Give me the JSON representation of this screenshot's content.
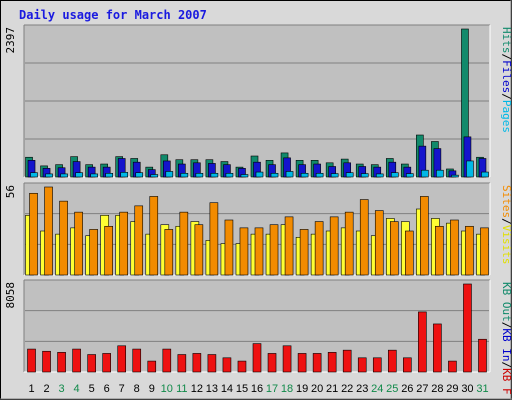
{
  "chart_data": {
    "type": "bar",
    "title": "Daily usage for March 2007",
    "categories": [
      "1",
      "2",
      "3",
      "4",
      "5",
      "6",
      "7",
      "8",
      "9",
      "10",
      "11",
      "12",
      "13",
      "14",
      "15",
      "16",
      "17",
      "18",
      "19",
      "20",
      "21",
      "22",
      "23",
      "24",
      "25",
      "26",
      "27",
      "28",
      "29",
      "30",
      "31"
    ],
    "weekend_days": [
      "3",
      "4",
      "10",
      "11",
      "17",
      "18",
      "24",
      "25",
      "31"
    ],
    "panels": [
      {
        "id": "hits",
        "max_label": "2397",
        "ylim": [
          0,
          2397
        ],
        "legend": [
          {
            "text": "Pages",
            "color": "#00b8e6"
          },
          {
            "text": "/",
            "color": "#000000"
          },
          {
            "text": "Files",
            "color": "#0000cc"
          },
          {
            "text": "/",
            "color": "#000000"
          },
          {
            "text": "Hits",
            "color": "#118a6b"
          }
        ],
        "series": [
          {
            "name": "Hits",
            "color": "#118a6b",
            "values": [
              320,
              180,
              200,
              330,
              200,
              210,
              330,
              300,
              160,
              360,
              280,
              280,
              280,
              250,
              160,
              340,
              270,
              390,
              270,
              270,
              230,
              290,
              210,
              200,
              300,
              210,
              680,
              575,
              130,
              2397,
              320
            ]
          },
          {
            "name": "Files",
            "color": "#1414cc",
            "values": [
              270,
              140,
              150,
              250,
              160,
              160,
              300,
              240,
              120,
              260,
              210,
              230,
              220,
              200,
              140,
              240,
              200,
              310,
              200,
              210,
              170,
              230,
              170,
              160,
              240,
              160,
              500,
              460,
              100,
              650,
              300
            ]
          },
          {
            "name": "Pages",
            "color": "#00b8e6",
            "values": [
              70,
              50,
              50,
              70,
              50,
              60,
              75,
              70,
              40,
              90,
              60,
              60,
              60,
              60,
              40,
              80,
              60,
              90,
              60,
              60,
              55,
              70,
              55,
              50,
              70,
              55,
              110,
              110,
              30,
              260,
              80
            ]
          }
        ]
      },
      {
        "id": "visits",
        "max_label": "56",
        "ylim": [
          0,
          56
        ],
        "legend": [
          {
            "text": "Visits",
            "color": "#e0e000"
          },
          {
            "text": "/",
            "color": "#000000"
          },
          {
            "text": "Sites",
            "color": "#f28b00"
          }
        ],
        "series": [
          {
            "name": "Visits",
            "color": "#ffff33",
            "values": [
              38,
              28,
              26,
              30,
              25,
              38,
              38,
              34,
              26,
              32,
              31,
              34,
              22,
              20,
              20,
              26,
              26,
              32,
              24,
              26,
              28,
              30,
              28,
              25,
              36,
              34,
              42,
              36,
              33,
              28,
              26
            ]
          },
          {
            "name": "Sites",
            "color": "#f28b00",
            "values": [
              52,
              56,
              47,
              40,
              29,
              31,
              40,
              44,
              50,
              29,
              40,
              32,
              46,
              35,
              30,
              30,
              32,
              37,
              29,
              34,
              37,
              40,
              48,
              41,
              34,
              28,
              50,
              31,
              35,
              31,
              30
            ]
          }
        ]
      },
      {
        "id": "kbytes",
        "max_label": "8058",
        "ylim": [
          0,
          8058
        ],
        "legend": [
          {
            "text": "KB F",
            "color": "#cc0000"
          },
          {
            "text": "/",
            "color": "#000000"
          },
          {
            "text": "KB In",
            "color": "#0000cc"
          },
          {
            "text": "/",
            "color": "#000000"
          },
          {
            "text": "KB Out",
            "color": "#118a6b"
          }
        ],
        "series": [
          {
            "name": "KB F",
            "color": "#ee1111",
            "values": [
              2100,
              1900,
              1800,
              2100,
              1600,
              1700,
              2400,
              2100,
              1000,
              2100,
              1600,
              1700,
              1600,
              1300,
              1000,
              2600,
              1700,
              2400,
              1700,
              1700,
              1800,
              2000,
              1300,
              1300,
              2000,
              1300,
              5500,
              4400,
              1000,
              8058,
              3000
            ]
          }
        ]
      }
    ]
  }
}
